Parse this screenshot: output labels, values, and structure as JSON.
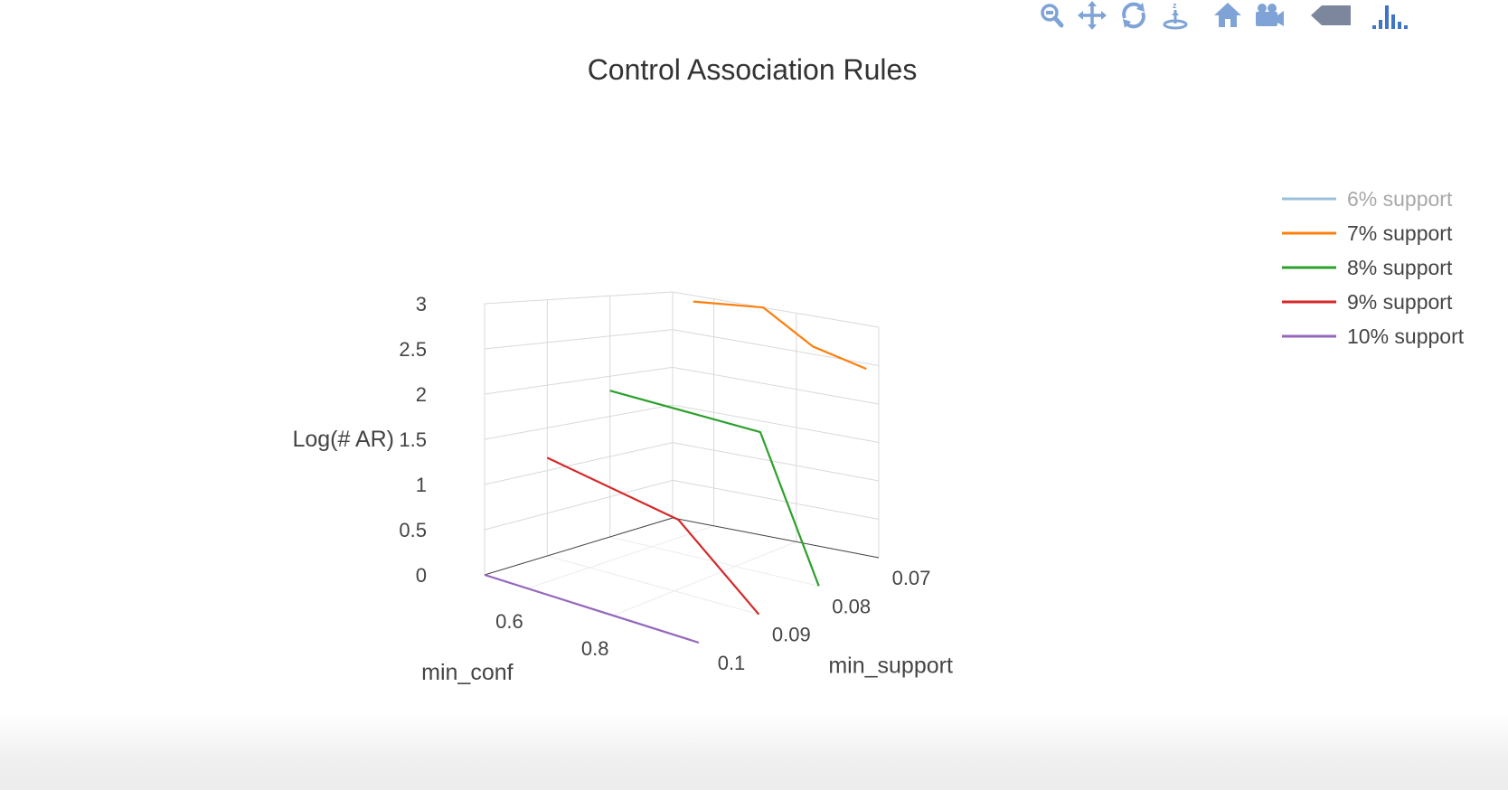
{
  "modebar": {
    "buttons": [
      {
        "icon": "zoom-icon"
      },
      {
        "icon": "pan-icon"
      },
      {
        "icon": "orbit-rotate-icon"
      },
      {
        "icon": "turntable-rotate-icon"
      },
      {
        "icon": "home-icon"
      },
      {
        "icon": "camera-icon"
      },
      {
        "icon": "hover-tag-icon"
      },
      {
        "icon": "plotly-logo-icon"
      }
    ],
    "icon_color": "#7fa3d7",
    "logo_color": "#3f74c6"
  },
  "chart_data": {
    "type": "line",
    "title": "Control Association Rules",
    "axes": {
      "x": {
        "label": "min_conf",
        "ticks": [
          "0.6",
          "0.8"
        ],
        "range": [
          0.5,
          1.0
        ]
      },
      "y": {
        "label": "min_support",
        "ticks": [
          "0.07",
          "0.08",
          "0.09",
          "0.1"
        ],
        "range": [
          0.07,
          0.1
        ]
      },
      "z": {
        "label": "Log(# AR)",
        "ticks": [
          "0",
          "0.5",
          "1",
          "1.5",
          "2",
          "2.5",
          "3"
        ],
        "range": [
          0,
          3
        ]
      }
    },
    "grid": true,
    "legend_position": "right",
    "series": [
      {
        "name": "6% support",
        "color": "#9ac0de",
        "legend_dimmed": true,
        "points": []
      },
      {
        "name": "7% support",
        "color": "#ff7f0e",
        "legend_dimmed": false,
        "points": [
          {
            "x": 0.55,
            "y": 0.07,
            "z": 2.92
          },
          {
            "x": 0.72,
            "y": 0.07,
            "z": 3.0
          },
          {
            "x": 0.84,
            "y": 0.07,
            "z": 2.6
          },
          {
            "x": 0.97,
            "y": 0.07,
            "z": 2.43
          }
        ]
      },
      {
        "name": "8% support",
        "color": "#2ca02c",
        "legend_dimmed": false,
        "points": [
          {
            "x": 0.5,
            "y": 0.08,
            "z": 1.82
          },
          {
            "x": 0.86,
            "y": 0.08,
            "z": 1.76
          },
          {
            "x": 1.0,
            "y": 0.08,
            "z": 0.0
          }
        ]
      },
      {
        "name": "9% support",
        "color": "#d62728",
        "legend_dimmed": false,
        "points": [
          {
            "x": 0.5,
            "y": 0.09,
            "z": 1.15
          },
          {
            "x": 0.81,
            "y": 0.09,
            "z": 0.87
          },
          {
            "x": 1.0,
            "y": 0.09,
            "z": 0.0
          }
        ]
      },
      {
        "name": "10% support",
        "color": "#9467bd",
        "legend_dimmed": false,
        "points": [
          {
            "x": 0.5,
            "y": 0.1,
            "z": 0.0
          },
          {
            "x": 1.0,
            "y": 0.1,
            "z": 0.0
          }
        ]
      }
    ]
  }
}
